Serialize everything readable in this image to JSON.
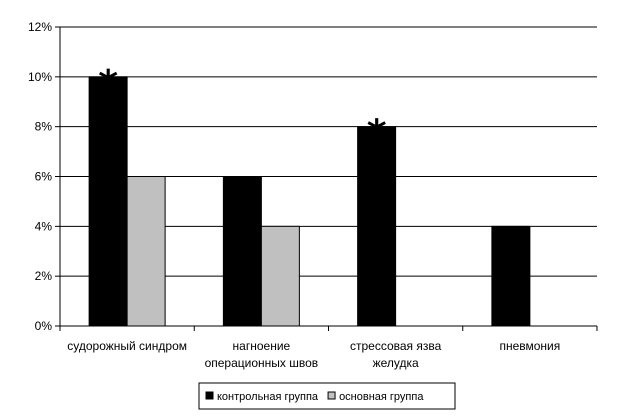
{
  "chart_data": {
    "type": "bar",
    "categories": [
      [
        "судорожный синдром"
      ],
      [
        "нагноение",
        "операционных швов"
      ],
      [
        "стрессовая язва",
        "желудка"
      ],
      [
        "пневмония"
      ]
    ],
    "series": [
      {
        "name": "контрольная группа",
        "color": "#000000",
        "values": [
          10,
          6,
          8,
          4
        ]
      },
      {
        "name": "основная группа",
        "color": "#c0c0c0",
        "values": [
          6,
          4,
          0,
          0
        ]
      }
    ],
    "annotations": [
      {
        "category_index": 0,
        "series_index": 0,
        "text": "*"
      },
      {
        "category_index": 2,
        "series_index": 0,
        "text": "*"
      }
    ],
    "yticks": [
      "0%",
      "2%",
      "4%",
      "6%",
      "8%",
      "10%",
      "12%"
    ],
    "ylim": [
      0,
      12
    ],
    "grid": true,
    "legend_position": "bottom"
  }
}
